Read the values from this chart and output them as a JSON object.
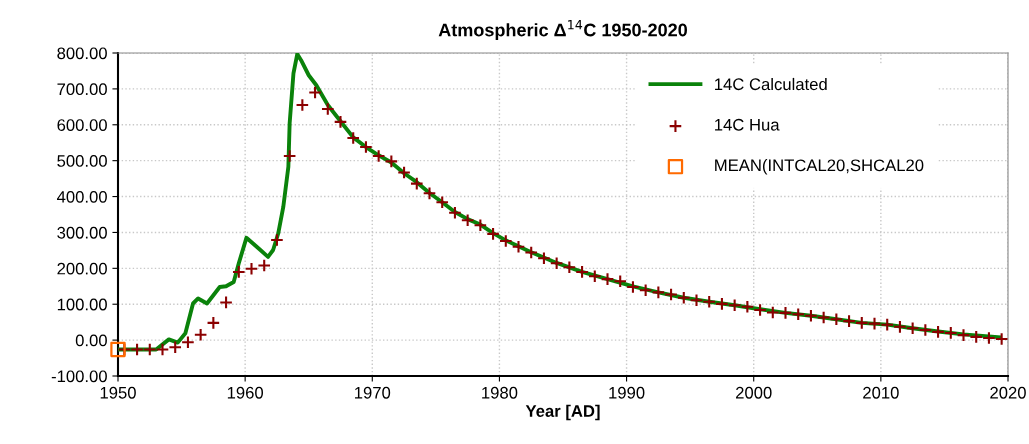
{
  "chart_data": {
    "type": "line",
    "title": "Atmospheric Δ$^{14}$C 1950-2020",
    "xlabel": "Year [AD]",
    "xlim": [
      1950,
      2020
    ],
    "xticks": [
      1950,
      1960,
      1970,
      1980,
      1990,
      2000,
      2010,
      2020
    ],
    "ylim": [
      -100,
      800
    ],
    "yticks": [
      {
        "value": -100,
        "label": "-100.00"
      },
      {
        "value": 0,
        "label": "0.00"
      },
      {
        "value": 100,
        "label": "100.00"
      },
      {
        "value": 200,
        "label": "200.00"
      },
      {
        "value": 300,
        "label": "300.00"
      },
      {
        "value": 400,
        "label": "400.00"
      },
      {
        "value": 500,
        "label": "500.00"
      },
      {
        "value": 600,
        "label": "600.00"
      },
      {
        "value": 700,
        "label": "700.00"
      },
      {
        "value": 800,
        "label": "800.00"
      }
    ],
    "grid": true,
    "legend": "top right",
    "series": [
      {
        "name": "14C Calculated",
        "color": "#0a820a",
        "marker": "none",
        "line_style": "solid",
        "x": [
          1950,
          1953.0,
          1954.0,
          1954.7,
          1955.3,
          1955.9,
          1956.3,
          1957.0,
          1958.0,
          1958.5,
          1959.1,
          1959.5,
          1960.1,
          1961.2,
          1961.8,
          1962.2,
          1962.6,
          1963.0,
          1963.4,
          1963.5,
          1963.8,
          1964.1,
          1964.4,
          1965.0,
          1965.6,
          1966.5,
          1967.5,
          1968.5,
          1969.5,
          1970.5,
          1971.5,
          1972.5,
          1973.5,
          1974.5,
          1975.5,
          1976.5,
          1977.5,
          1978.5,
          1979.5,
          1980.5,
          1982.5,
          1984.5,
          1986.5,
          1988.5,
          1990.5,
          1992.5,
          1994.5,
          1996.5,
          1998.5,
          2000.5,
          2002.5,
          2004.5,
          2006.5,
          2008.5,
          2010.5,
          2012.5,
          2014.5,
          2016.5,
          2019.3
        ],
        "values": [
          -26,
          -26,
          2,
          -7,
          19,
          102,
          116,
          102,
          148,
          150,
          162,
          214,
          285,
          251,
          232,
          251,
          297,
          371,
          483,
          604,
          743,
          797,
          780,
          738,
          710,
          655,
          610,
          565,
          538,
          515,
          495,
          465,
          440,
          410,
          384,
          357,
          337,
          322,
          298,
          278,
          245,
          215,
          190,
          170,
          150,
          133,
          118,
          107,
          97,
          86,
          76,
          68,
          58,
          48,
          43,
          33,
          24,
          16,
          8
        ]
      },
      {
        "name": "14C Hua",
        "type": "scatter",
        "color": "#8b0000",
        "marker": "cross",
        "x": [
          1950.5,
          1951.5,
          1952.5,
          1953.5,
          1954.5,
          1955.5,
          1956.5,
          1957.5,
          1958.5,
          1959.5,
          1960.5,
          1961.5,
          1962.5,
          1963.5,
          1964.5,
          1965.5,
          1966.5,
          1967.5,
          1968.5,
          1969.5,
          1970.5,
          1971.5,
          1972.5,
          1973.5,
          1974.5,
          1975.5,
          1976.5,
          1977.5,
          1978.5,
          1979.5,
          1980.5,
          1981.5,
          1982.5,
          1983.5,
          1984.5,
          1985.5,
          1986.5,
          1987.5,
          1988.5,
          1989.5,
          1990.5,
          1991.5,
          1992.5,
          1993.5,
          1994.5,
          1995.5,
          1996.5,
          1997.5,
          1998.5,
          1999.5,
          2000.5,
          2001.5,
          2002.5,
          2003.5,
          2004.5,
          2005.5,
          2006.5,
          2007.5,
          2008.5,
          2009.5,
          2010.5,
          2011.5,
          2012.5,
          2013.5,
          2014.5,
          2015.5,
          2016.5,
          2017.5,
          2018.5,
          2019.5
        ],
        "values": [
          -26,
          -26,
          -26,
          -26,
          -20,
          -6,
          15,
          48,
          105,
          190,
          199,
          208,
          279,
          513,
          655,
          690,
          644,
          608,
          563,
          538,
          513,
          498,
          467,
          436,
          409,
          384,
          355,
          334,
          320,
          296,
          276,
          260,
          244,
          228,
          214,
          203,
          190,
          178,
          170,
          164,
          148,
          139,
          133,
          127,
          118,
          111,
          107,
          101,
          97,
          93,
          84,
          77,
          76,
          72,
          68,
          63,
          58,
          53,
          48,
          46,
          43,
          37,
          33,
          28,
          23,
          20,
          14,
          9,
          6,
          3
        ]
      },
      {
        "name": "MEAN(INTCAL20,SHCAL20",
        "type": "scatter",
        "color": "#ff6a00",
        "marker": "square",
        "x": [
          1950
        ],
        "values": [
          -26
        ]
      }
    ]
  }
}
